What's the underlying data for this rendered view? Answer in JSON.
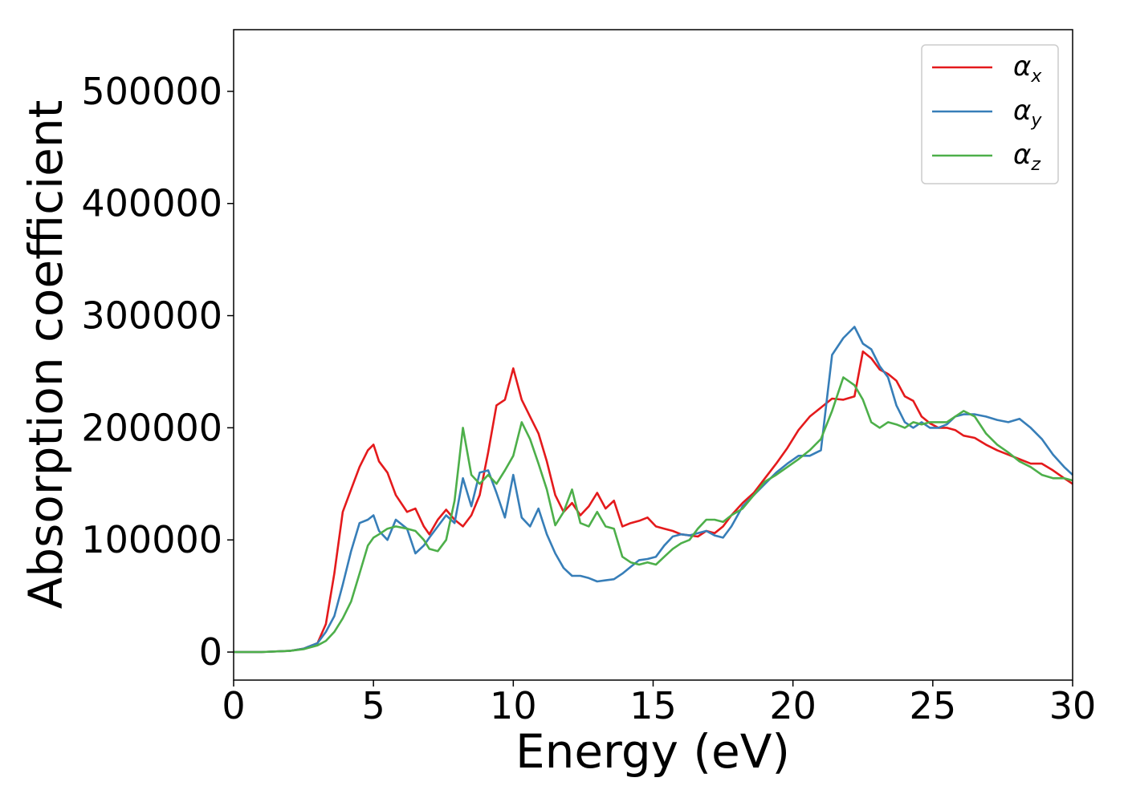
{
  "chart_data": {
    "type": "line",
    "title": "",
    "xlabel": "Energy (eV)",
    "ylabel": "Absorption coefficient",
    "xlim": [
      0,
      30
    ],
    "ylim": [
      -25000,
      555000
    ],
    "xticks": [
      0,
      5,
      10,
      15,
      20,
      25,
      30
    ],
    "xtick_labels": [
      "0",
      "5",
      "10",
      "15",
      "20",
      "25",
      "30"
    ],
    "yticks": [
      0,
      100000,
      200000,
      300000,
      400000,
      500000
    ],
    "ytick_labels": [
      "0",
      "100000",
      "200000",
      "300000",
      "400000",
      "500000"
    ],
    "grid": false,
    "legend_position": "top-right",
    "series": [
      {
        "name": "α",
        "subscript": "x",
        "color": "#e41a1c",
        "x": [
          0,
          1,
          2,
          2.5,
          3,
          3.3,
          3.6,
          3.9,
          4.2,
          4.5,
          4.8,
          5.0,
          5.2,
          5.5,
          5.8,
          6.2,
          6.5,
          6.8,
          7.0,
          7.3,
          7.6,
          7.9,
          8.2,
          8.5,
          8.8,
          9.1,
          9.4,
          9.7,
          10.0,
          10.3,
          10.6,
          10.9,
          11.2,
          11.5,
          11.8,
          12.1,
          12.4,
          12.7,
          13.0,
          13.3,
          13.6,
          13.9,
          14.2,
          14.5,
          14.8,
          15.1,
          15.4,
          15.7,
          16.0,
          16.3,
          16.6,
          16.9,
          17.2,
          17.5,
          17.8,
          18.2,
          18.6,
          19.0,
          19.4,
          19.8,
          20.2,
          20.6,
          21.0,
          21.4,
          21.8,
          22.2,
          22.5,
          22.8,
          23.1,
          23.4,
          23.7,
          24.0,
          24.3,
          24.6,
          24.9,
          25.2,
          25.5,
          25.8,
          26.1,
          26.5,
          26.9,
          27.3,
          27.7,
          28.1,
          28.5,
          28.9,
          29.3,
          29.7,
          30.0
        ],
        "values": [
          0,
          0,
          1000,
          3000,
          8000,
          25000,
          70000,
          125000,
          145000,
          165000,
          180000,
          185000,
          170000,
          160000,
          140000,
          125000,
          128000,
          112000,
          105000,
          118000,
          127000,
          118000,
          112000,
          122000,
          140000,
          178000,
          220000,
          225000,
          253000,
          225000,
          210000,
          195000,
          170000,
          140000,
          125000,
          133000,
          122000,
          130000,
          142000,
          128000,
          135000,
          112000,
          115000,
          117000,
          120000,
          112000,
          110000,
          108000,
          105000,
          104000,
          103000,
          108000,
          106000,
          112000,
          122000,
          133000,
          142000,
          155000,
          168000,
          182000,
          198000,
          210000,
          218000,
          226000,
          225000,
          228000,
          268000,
          262000,
          252000,
          248000,
          242000,
          228000,
          224000,
          210000,
          204000,
          200000,
          200000,
          198000,
          193000,
          191000,
          185000,
          180000,
          176000,
          172000,
          168000,
          168000,
          162000,
          155000,
          150000
        ]
      },
      {
        "name": "α",
        "subscript": "y",
        "color": "#377eb8",
        "x": [
          0,
          1,
          2,
          2.5,
          3,
          3.3,
          3.6,
          3.9,
          4.2,
          4.5,
          4.8,
          5.0,
          5.2,
          5.5,
          5.8,
          6.2,
          6.5,
          6.8,
          7.0,
          7.3,
          7.6,
          7.9,
          8.2,
          8.5,
          8.8,
          9.1,
          9.4,
          9.7,
          10.0,
          10.3,
          10.6,
          10.9,
          11.2,
          11.5,
          11.8,
          12.1,
          12.4,
          12.7,
          13.0,
          13.3,
          13.6,
          13.9,
          14.2,
          14.5,
          14.8,
          15.1,
          15.4,
          15.7,
          16.0,
          16.3,
          16.6,
          16.9,
          17.2,
          17.5,
          17.8,
          18.2,
          18.6,
          19.0,
          19.4,
          19.8,
          20.2,
          20.6,
          21.0,
          21.4,
          21.8,
          22.2,
          22.5,
          22.8,
          23.1,
          23.4,
          23.7,
          24.0,
          24.3,
          24.6,
          24.9,
          25.2,
          25.5,
          25.8,
          26.1,
          26.5,
          26.9,
          27.3,
          27.7,
          28.1,
          28.5,
          28.9,
          29.3,
          29.7,
          30.0
        ],
        "values": [
          0,
          0,
          1000,
          3000,
          8000,
          18000,
          32000,
          60000,
          90000,
          115000,
          118000,
          122000,
          108000,
          100000,
          118000,
          110000,
          88000,
          95000,
          102000,
          112000,
          122000,
          115000,
          155000,
          130000,
          160000,
          162000,
          142000,
          120000,
          158000,
          120000,
          112000,
          128000,
          105000,
          88000,
          75000,
          68000,
          68000,
          66000,
          63000,
          64000,
          65000,
          70000,
          76000,
          82000,
          83000,
          85000,
          95000,
          103000,
          105000,
          104000,
          106000,
          108000,
          104000,
          102000,
          112000,
          130000,
          140000,
          150000,
          160000,
          168000,
          175000,
          175000,
          180000,
          265000,
          280000,
          290000,
          275000,
          270000,
          255000,
          245000,
          220000,
          205000,
          200000,
          205000,
          200000,
          200000,
          203000,
          210000,
          212000,
          212000,
          210000,
          207000,
          205000,
          208000,
          200000,
          190000,
          176000,
          165000,
          158000
        ]
      },
      {
        "name": "α",
        "subscript": "z",
        "color": "#4daf4a",
        "x": [
          0,
          1,
          2,
          2.5,
          3,
          3.3,
          3.6,
          3.9,
          4.2,
          4.5,
          4.8,
          5.0,
          5.2,
          5.5,
          5.8,
          6.2,
          6.5,
          6.8,
          7.0,
          7.3,
          7.6,
          7.9,
          8.2,
          8.5,
          8.8,
          9.1,
          9.4,
          9.7,
          10.0,
          10.3,
          10.6,
          10.9,
          11.2,
          11.5,
          11.8,
          12.1,
          12.4,
          12.7,
          13.0,
          13.3,
          13.6,
          13.9,
          14.2,
          14.5,
          14.8,
          15.1,
          15.4,
          15.7,
          16.0,
          16.3,
          16.6,
          16.9,
          17.2,
          17.5,
          17.8,
          18.2,
          18.6,
          19.0,
          19.4,
          19.8,
          20.2,
          20.6,
          21.0,
          21.4,
          21.8,
          22.2,
          22.5,
          22.8,
          23.1,
          23.4,
          23.7,
          24.0,
          24.3,
          24.6,
          24.9,
          25.2,
          25.5,
          25.8,
          26.1,
          26.5,
          26.9,
          27.3,
          27.7,
          28.1,
          28.5,
          28.9,
          29.3,
          29.7,
          30.0
        ],
        "values": [
          0,
          0,
          1000,
          2500,
          6000,
          10000,
          18000,
          30000,
          45000,
          70000,
          95000,
          102000,
          105000,
          110000,
          112000,
          110000,
          108000,
          100000,
          92000,
          90000,
          100000,
          135000,
          200000,
          158000,
          150000,
          158000,
          150000,
          162000,
          175000,
          205000,
          190000,
          168000,
          145000,
          113000,
          125000,
          145000,
          115000,
          112000,
          125000,
          112000,
          110000,
          85000,
          80000,
          78000,
          80000,
          78000,
          85000,
          92000,
          97000,
          100000,
          110000,
          118000,
          118000,
          116000,
          122000,
          128000,
          140000,
          152000,
          158000,
          165000,
          172000,
          180000,
          190000,
          215000,
          245000,
          238000,
          225000,
          205000,
          200000,
          205000,
          203000,
          200000,
          205000,
          203000,
          205000,
          205000,
          205000,
          210000,
          215000,
          210000,
          195000,
          185000,
          178000,
          170000,
          165000,
          158000,
          155000,
          155000,
          153000
        ]
      }
    ]
  }
}
